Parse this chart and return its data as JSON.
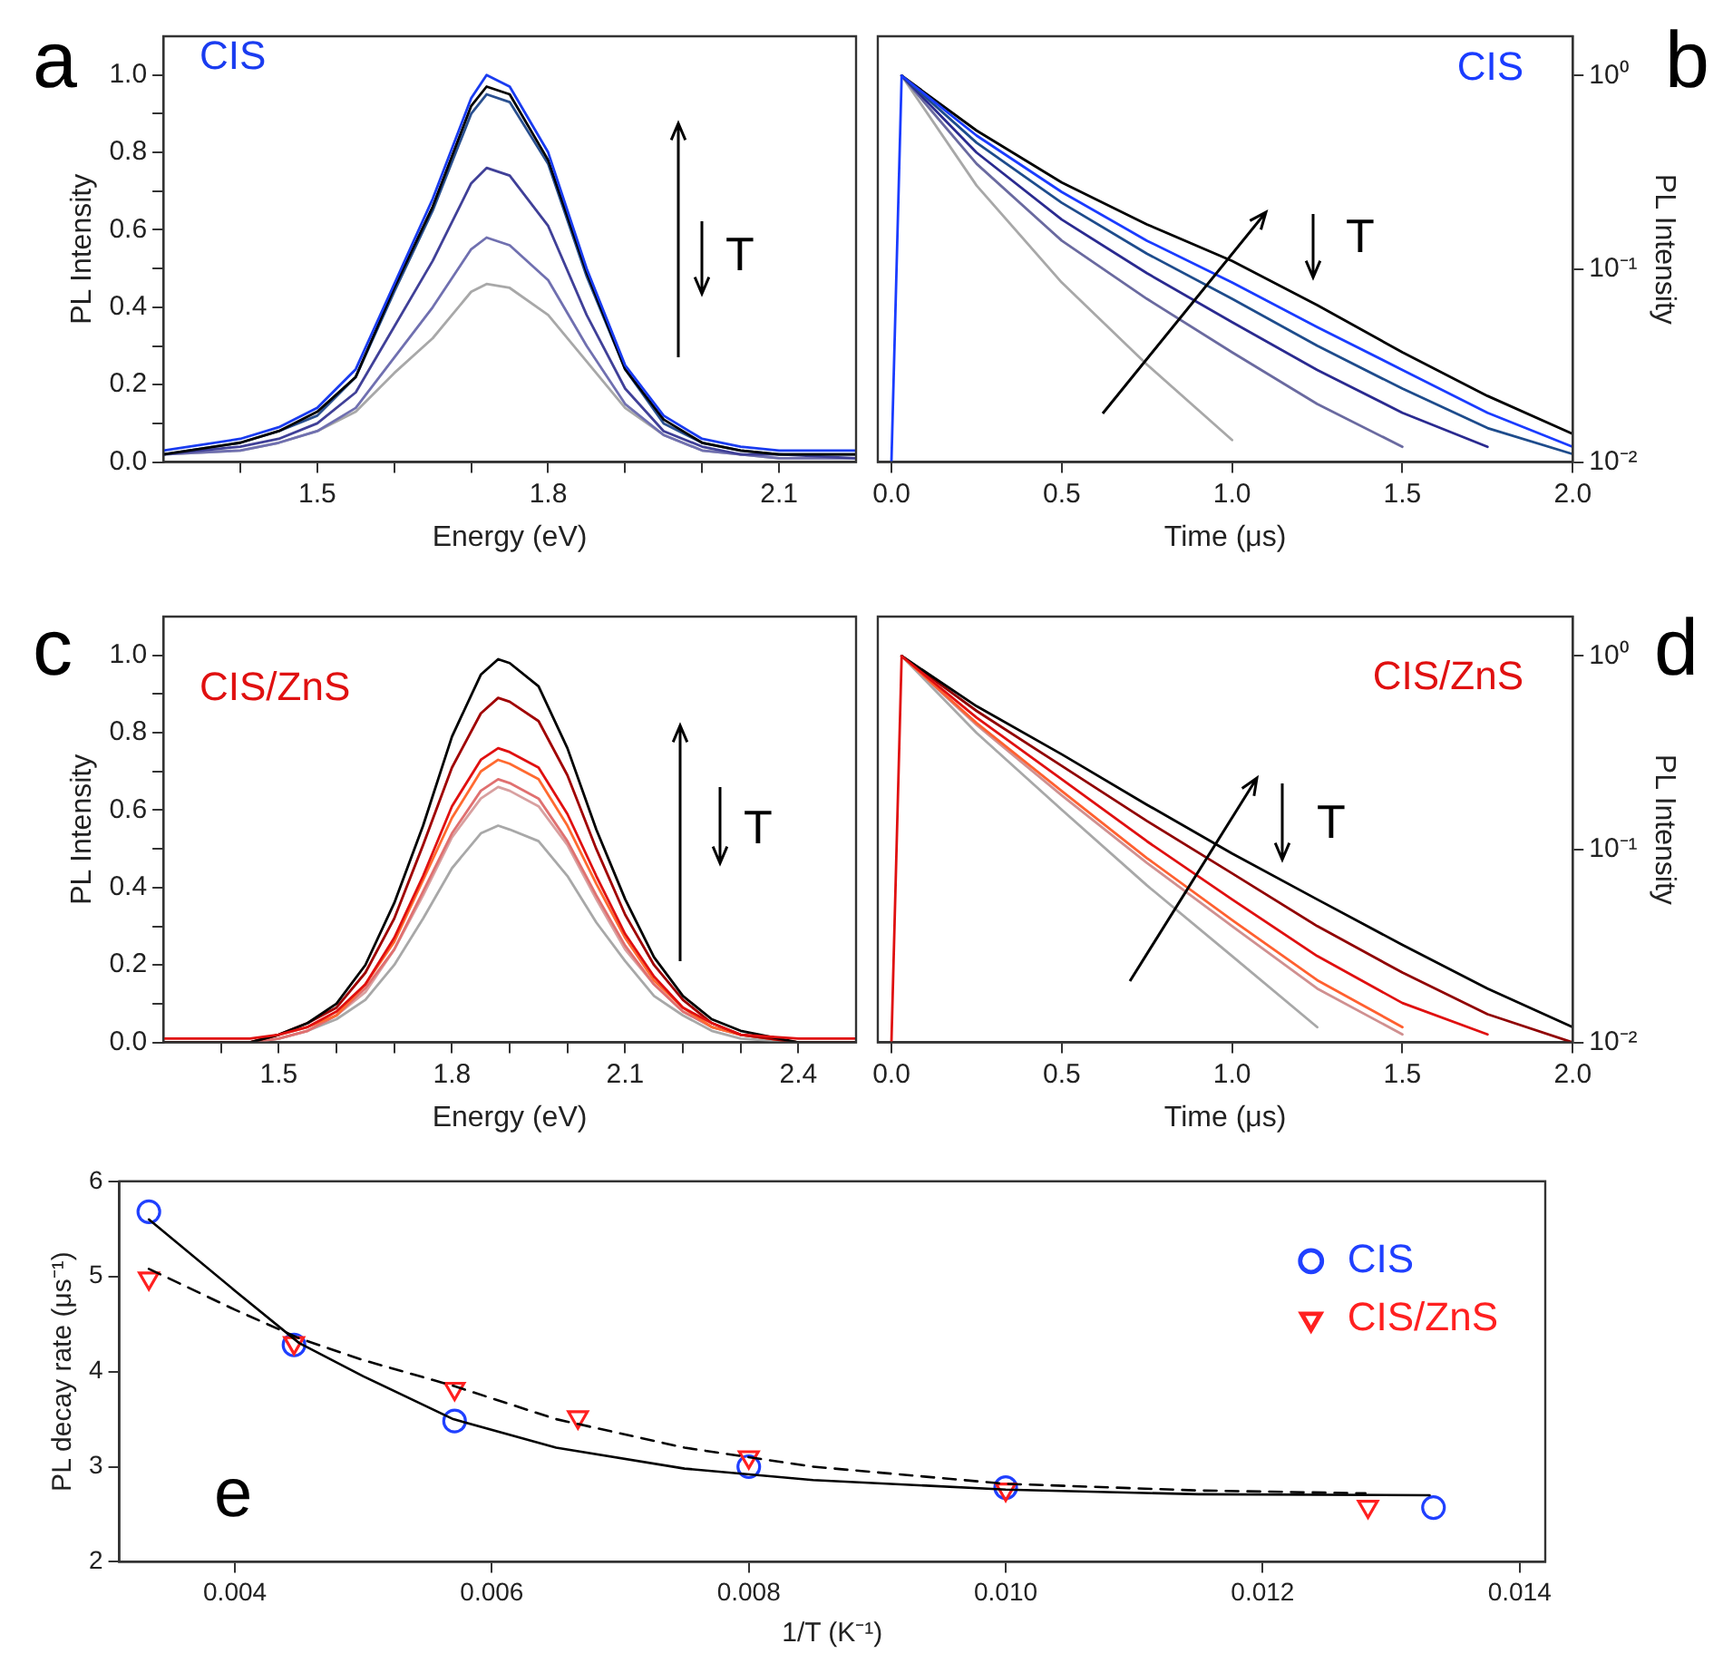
{
  "chart_data": [
    {
      "type": "line",
      "title": "CIS",
      "xlabel": "Energy (eV)",
      "ylabel": "PL Intensity",
      "annotations": [
        "a",
        "T"
      ],
      "grid": false,
      "legend": false,
      "marker": "none",
      "x": [
        1.3,
        1.4,
        1.45,
        1.5,
        1.55,
        1.6,
        1.65,
        1.7,
        1.72,
        1.75,
        1.8,
        1.85,
        1.9,
        1.95,
        2.0,
        2.05,
        2.1,
        2.2
      ],
      "xlim": [
        1.3,
        2.2
      ],
      "xticks": [
        {
          "value": 1.4,
          "label": null
        },
        1.5,
        {
          "value": 1.6,
          "label": null
        },
        {
          "value": 1.7,
          "label": null
        },
        1.8,
        {
          "value": 1.9,
          "label": null
        },
        {
          "value": 2.0,
          "label": null
        },
        2.1
      ],
      "ylim": [
        0,
        1.1
      ],
      "yticks": [
        {
          "value": 0,
          "label": "0.0"
        },
        {
          "value": 0.1,
          "label": null
        },
        {
          "value": 0.2,
          "label": "0.2"
        },
        {
          "value": 0.3,
          "label": null
        },
        {
          "value": 0.4,
          "label": "0.4"
        },
        {
          "value": 0.5,
          "label": null
        },
        {
          "value": 0.6,
          "label": "0.6"
        },
        {
          "value": 0.7,
          "label": null
        },
        {
          "value": 0.8,
          "label": "0.8"
        },
        {
          "value": 0.9,
          "label": null
        },
        {
          "value": 1.0,
          "label": "1.0"
        }
      ],
      "series": [
        {
          "color": "#a8a8a8",
          "values": [
            0.02,
            0.03,
            0.05,
            0.08,
            0.13,
            0.23,
            0.32,
            0.44,
            0.46,
            0.45,
            0.38,
            0.26,
            0.14,
            0.07,
            0.03,
            0.02,
            0.01,
            0.01
          ]
        },
        {
          "color": "#7070b0",
          "values": [
            0.02,
            0.03,
            0.05,
            0.08,
            0.14,
            0.27,
            0.4,
            0.55,
            0.58,
            0.56,
            0.47,
            0.3,
            0.15,
            0.07,
            0.03,
            0.02,
            0.01,
            0.01
          ]
        },
        {
          "color": "#404098",
          "values": [
            0.02,
            0.04,
            0.06,
            0.1,
            0.18,
            0.35,
            0.52,
            0.72,
            0.76,
            0.74,
            0.61,
            0.38,
            0.19,
            0.08,
            0.04,
            0.02,
            0.02,
            0.01
          ]
        },
        {
          "color": "#2a5090",
          "values": [
            0.02,
            0.05,
            0.08,
            0.12,
            0.22,
            0.44,
            0.65,
            0.9,
            0.95,
            0.93,
            0.77,
            0.48,
            0.24,
            0.1,
            0.05,
            0.03,
            0.02,
            0.02
          ]
        },
        {
          "color": "#000000",
          "values": [
            0.02,
            0.05,
            0.08,
            0.13,
            0.22,
            0.45,
            0.66,
            0.92,
            0.97,
            0.95,
            0.78,
            0.49,
            0.24,
            0.11,
            0.05,
            0.03,
            0.02,
            0.02
          ]
        },
        {
          "color": "#1a3cf0",
          "values": [
            0.03,
            0.06,
            0.09,
            0.14,
            0.24,
            0.46,
            0.68,
            0.94,
            1.0,
            0.97,
            0.8,
            0.5,
            0.25,
            0.12,
            0.06,
            0.04,
            0.03,
            0.03
          ]
        }
      ]
    },
    {
      "type": "line",
      "title": "CIS",
      "xlabel": "Time (μs)",
      "y2label": "PL Intensity",
      "annotations": [
        "b",
        "T"
      ],
      "grid": false,
      "legend": false,
      "marker": "none",
      "log": "y2",
      "x": [
        0,
        0.03,
        0.25,
        0.5,
        0.75,
        1.0,
        1.25,
        1.5,
        1.75,
        2.0
      ],
      "xlim": [
        -0.04,
        2.0
      ],
      "xticks": [
        {
          "value": 0,
          "label": "0.0"
        },
        {
          "value": 0.5,
          "label": "0.5"
        },
        {
          "value": 1.0,
          "label": "1.0"
        },
        {
          "value": 1.5,
          "label": "1.5"
        },
        {
          "value": 2.0,
          "label": "2.0"
        }
      ],
      "y2lim": [
        0.01,
        1.6
      ],
      "y2ticks": [
        {
          "value": 0.01,
          "label": "10⁻²"
        },
        {
          "value": 0.1,
          "label": "10⁻¹"
        },
        {
          "value": 1,
          "label": "10⁰"
        }
      ],
      "series": [
        {
          "axis": "y2",
          "color": "#a8a8a8",
          "values": [
            null,
            1,
            0.27,
            0.085,
            0.032,
            0.013,
            null,
            null,
            null,
            null
          ]
        },
        {
          "axis": "y2",
          "color": "#6a6aa0",
          "values": [
            null,
            1,
            0.35,
            0.14,
            0.07,
            0.037,
            0.02,
            0.012,
            null,
            null
          ]
        },
        {
          "axis": "y2",
          "color": "#2a2a90",
          "values": [
            null,
            1,
            0.4,
            0.18,
            0.095,
            0.053,
            0.03,
            0.018,
            0.012,
            null
          ]
        },
        {
          "axis": "y2",
          "color": "#1e4c8c",
          "values": [
            null,
            1,
            0.45,
            0.22,
            0.12,
            0.07,
            0.04,
            0.024,
            0.015,
            0.011
          ]
        },
        {
          "axis": "y2",
          "color": "#000000",
          "values": [
            null,
            1,
            0.52,
            0.28,
            0.17,
            0.11,
            0.065,
            0.037,
            0.022,
            0.014
          ]
        },
        {
          "axis": "y2",
          "color": "#1a3cff",
          "values": [
            0.01,
            1,
            0.49,
            0.25,
            0.14,
            0.085,
            0.05,
            0.03,
            0.018,
            0.012
          ]
        }
      ]
    },
    {
      "type": "line",
      "title": "CIS/ZnS",
      "xlabel": "Energy (eV)",
      "ylabel": "PL Intensity",
      "annotations": [
        "c",
        "T"
      ],
      "grid": false,
      "legend": false,
      "marker": "none",
      "x": [
        1.3,
        1.45,
        1.5,
        1.55,
        1.6,
        1.65,
        1.7,
        1.75,
        1.8,
        1.85,
        1.88,
        1.9,
        1.95,
        2.0,
        2.05,
        2.1,
        2.15,
        2.2,
        2.25,
        2.3,
        2.4,
        2.5
      ],
      "xlim": [
        1.3,
        2.5
      ],
      "xticks": [
        {
          "value": 1.4,
          "label": null
        },
        1.5,
        {
          "value": 1.6,
          "label": null
        },
        {
          "value": 1.7,
          "label": null
        },
        1.8,
        {
          "value": 1.9,
          "label": null
        },
        {
          "value": 2.0,
          "label": null
        },
        2.1,
        {
          "value": 2.2,
          "label": null
        },
        {
          "value": 2.3,
          "label": null
        },
        2.4
      ],
      "ylim": [
        0,
        1.1
      ],
      "yticks": [
        {
          "value": 0,
          "label": "0.0"
        },
        {
          "value": 0.1,
          "label": null
        },
        {
          "value": 0.2,
          "label": "0.2"
        },
        {
          "value": 0.3,
          "label": null
        },
        {
          "value": 0.4,
          "label": "0.4"
        },
        {
          "value": 0.5,
          "label": null
        },
        {
          "value": 0.6,
          "label": "0.6"
        },
        {
          "value": 0.7,
          "label": null
        },
        {
          "value": 0.8,
          "label": "0.8"
        },
        {
          "value": 0.9,
          "label": null
        },
        {
          "value": 1.0,
          "label": "1.0"
        }
      ],
      "series": [
        {
          "color": "#a8a8a8",
          "values": [
            0,
            0,
            0.01,
            0.03,
            0.06,
            0.11,
            0.2,
            0.32,
            0.45,
            0.54,
            0.56,
            0.55,
            0.52,
            0.43,
            0.31,
            0.21,
            0.12,
            0.07,
            0.03,
            0.01,
            0,
            0
          ]
        },
        {
          "color": "#d8a0a0",
          "values": [
            0,
            0,
            0.01,
            0.03,
            0.07,
            0.13,
            0.24,
            0.38,
            0.53,
            0.63,
            0.66,
            0.65,
            0.61,
            0.51,
            0.37,
            0.24,
            0.15,
            0.08,
            0.04,
            0.02,
            0,
            0
          ]
        },
        {
          "color": "#e07070",
          "values": [
            0,
            0,
            0.01,
            0.03,
            0.07,
            0.14,
            0.24,
            0.39,
            0.54,
            0.65,
            0.68,
            0.67,
            0.63,
            0.52,
            0.38,
            0.25,
            0.15,
            0.08,
            0.04,
            0.02,
            0,
            0
          ]
        },
        {
          "color": "#ff6a30",
          "values": [
            0,
            0,
            0.02,
            0.04,
            0.07,
            0.15,
            0.26,
            0.42,
            0.58,
            0.7,
            0.73,
            0.72,
            0.68,
            0.56,
            0.41,
            0.27,
            0.16,
            0.09,
            0.04,
            0.02,
            0,
            0
          ]
        },
        {
          "color": "#a00000",
          "values": [
            0,
            0,
            0.02,
            0.05,
            0.09,
            0.18,
            0.32,
            0.51,
            0.71,
            0.85,
            0.89,
            0.88,
            0.83,
            0.69,
            0.5,
            0.33,
            0.2,
            0.11,
            0.05,
            0.02,
            0,
            0
          ]
        },
        {
          "color": "#000000",
          "values": [
            0,
            0,
            0.02,
            0.05,
            0.1,
            0.2,
            0.36,
            0.56,
            0.79,
            0.95,
            0.99,
            0.98,
            0.92,
            0.76,
            0.55,
            0.37,
            0.22,
            0.12,
            0.06,
            0.03,
            0,
            0
          ]
        },
        {
          "color": "#e01010",
          "values": [
            0.01,
            0.01,
            0.02,
            0.04,
            0.08,
            0.15,
            0.27,
            0.43,
            0.61,
            0.73,
            0.76,
            0.75,
            0.71,
            0.59,
            0.43,
            0.28,
            0.17,
            0.09,
            0.05,
            0.02,
            0.01,
            0.01
          ]
        }
      ]
    },
    {
      "type": "line",
      "title": "CIS/ZnS",
      "xlabel": "Time (μs)",
      "y2label": "PL Intensity",
      "annotations": [
        "d",
        "T"
      ],
      "grid": false,
      "legend": false,
      "marker": "none",
      "log": "y2",
      "x": [
        0,
        0.03,
        0.25,
        0.5,
        0.75,
        1.0,
        1.25,
        1.5,
        1.75,
        2.0
      ],
      "xlim": [
        -0.04,
        2.0
      ],
      "xticks": [
        {
          "value": 0,
          "label": "0.0"
        },
        {
          "value": 0.5,
          "label": "0.5"
        },
        {
          "value": 1.0,
          "label": "1.0"
        },
        {
          "value": 1.5,
          "label": "1.5"
        },
        {
          "value": 2.0,
          "label": "2.0"
        }
      ],
      "y2lim": [
        0.01,
        1.6
      ],
      "y2ticks": [
        {
          "value": 0.01,
          "label": "10⁻²"
        },
        {
          "value": 0.1,
          "label": "10⁻¹"
        },
        {
          "value": 1,
          "label": "10⁰"
        }
      ],
      "series": [
        {
          "axis": "y2",
          "color": "#a8a8a8",
          "values": [
            null,
            1,
            0.4,
            0.16,
            0.065,
            0.028,
            0.012,
            null,
            null,
            null
          ]
        },
        {
          "axis": "y2",
          "color": "#d09090",
          "values": [
            null,
            1,
            0.44,
            0.19,
            0.085,
            0.04,
            0.019,
            0.011,
            null,
            null
          ]
        },
        {
          "axis": "y2",
          "color": "#ff6030",
          "values": [
            null,
            1,
            0.45,
            0.2,
            0.09,
            0.043,
            0.021,
            0.012,
            null,
            null
          ]
        },
        {
          "axis": "y2",
          "color": "#900000",
          "values": [
            null,
            1,
            0.52,
            0.27,
            0.14,
            0.075,
            0.04,
            0.023,
            0.014,
            0.01
          ]
        },
        {
          "axis": "y2",
          "color": "#000000",
          "values": [
            null,
            1,
            0.55,
            0.31,
            0.17,
            0.095,
            0.055,
            0.032,
            0.019,
            0.012
          ]
        },
        {
          "axis": "y2",
          "color": "#e01010",
          "values": [
            0.01,
            1,
            0.48,
            0.23,
            0.11,
            0.055,
            0.028,
            0.016,
            0.011,
            null
          ]
        }
      ]
    },
    {
      "type": "scatter",
      "xlabel": "1/T (K⁻¹)",
      "ylabel": "PL decay rate (μs⁻¹)",
      "annotations": [
        "e"
      ],
      "grid": false,
      "legend": "top right",
      "xlim": [
        0.0031,
        0.0142
      ],
      "xticks": [
        0.004,
        0.006,
        0.008,
        {
          "value": 0.01,
          "label": "0.010"
        },
        0.012,
        0.014
      ],
      "ylim": [
        2,
        6
      ],
      "yticks": [
        2,
        3,
        4,
        5,
        6
      ],
      "series": [
        {
          "name": "CIS",
          "type": "scatter",
          "marker": "circle",
          "color": "#2040ff",
          "x": [
            0.00333,
            0.00446,
            0.00571,
            0.008,
            0.01,
            0.01333
          ],
          "values": [
            5.68,
            4.28,
            3.48,
            3.0,
            2.78,
            2.57
          ]
        },
        {
          "name": "CIS/ZnS",
          "type": "scatter",
          "marker": "triangle",
          "color": "#ff2020",
          "x": [
            0.00333,
            0.00446,
            0.00571,
            0.00667,
            0.008,
            0.01,
            0.01282
          ],
          "values": [
            4.98,
            4.3,
            3.82,
            3.52,
            3.1,
            2.76,
            2.58
          ]
        },
        {
          "type": "line",
          "marker": "none",
          "line_style": "solid",
          "color": "#000000",
          "x": [
            0.00333,
            0.004,
            0.0045,
            0.005,
            0.0057,
            0.0065,
            0.0075,
            0.0085,
            0.01,
            0.0115,
            0.0133
          ],
          "values": [
            5.6,
            4.85,
            4.3,
            3.95,
            3.5,
            3.2,
            2.98,
            2.86,
            2.76,
            2.71,
            2.7
          ]
        },
        {
          "type": "line",
          "marker": "none",
          "line_style": "dashed",
          "color": "#000000",
          "x": [
            0.00333,
            0.004,
            0.0045,
            0.005,
            0.0057,
            0.0065,
            0.0075,
            0.0085,
            0.01,
            0.0115,
            0.0128
          ],
          "values": [
            5.08,
            4.65,
            4.35,
            4.12,
            3.85,
            3.5,
            3.2,
            3.0,
            2.82,
            2.75,
            2.72
          ]
        }
      ]
    }
  ]
}
